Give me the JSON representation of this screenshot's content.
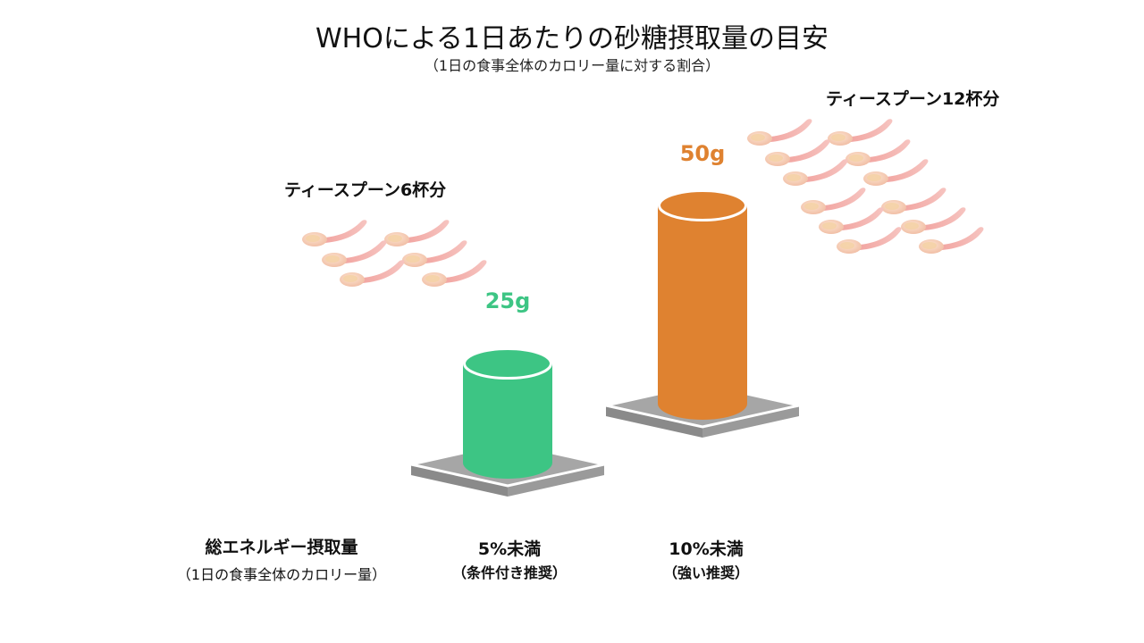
{
  "chart_data": {
    "type": "bar",
    "title": "WHOによる1日あたりの砂糖摂取量の目安",
    "subtitle": "（1日の食事全体のカロリー量に対する割合）",
    "axis_label": {
      "main": "総エネルギー摂取量",
      "sub": "（1日の食事全体のカロリー量）"
    },
    "unit": "g",
    "categories": [
      {
        "label": "5%未満",
        "note": "（条件付き推奨）"
      },
      {
        "label": "10%未満",
        "note": "（強い推奨）"
      }
    ],
    "values": [
      25,
      50
    ],
    "value_labels": [
      "25g",
      "50g"
    ],
    "teaspoons": [
      6,
      12
    ],
    "teaspoon_labels": [
      "ティースプーン6杯分",
      "ティースプーン12杯分"
    ],
    "colors": [
      "#3dc584",
      "#df8230"
    ],
    "base_color": "#a6a6a6",
    "ylim": [
      0,
      50
    ],
    "grid": false,
    "legend": "none"
  }
}
